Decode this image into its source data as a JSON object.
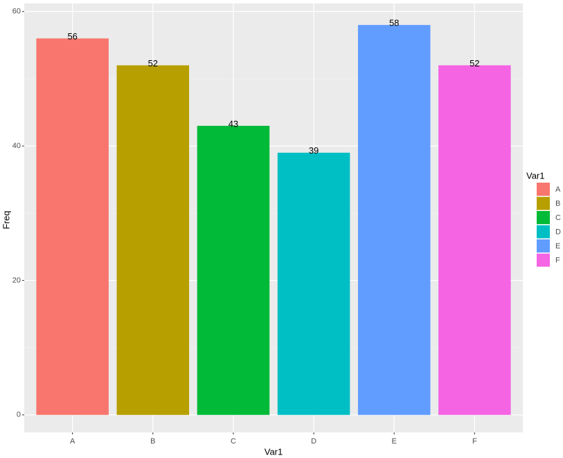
{
  "chart_data": {
    "type": "bar",
    "x_label": "Var1",
    "y_label": "Freq",
    "legend_title": "Var1",
    "categories": [
      "A",
      "B",
      "C",
      "D",
      "E",
      "F"
    ],
    "values": [
      56,
      52,
      43,
      39,
      58,
      52
    ],
    "colors": [
      "#F8766D",
      "#B79F00",
      "#00BA38",
      "#00BFC4",
      "#619CFF",
      "#F564E3"
    ],
    "ylim": [
      -2.6,
      61.2
    ],
    "yticks": [
      0,
      20,
      40,
      60
    ],
    "yminor": [
      10,
      30,
      50
    ],
    "grid": true,
    "legend": "right"
  }
}
